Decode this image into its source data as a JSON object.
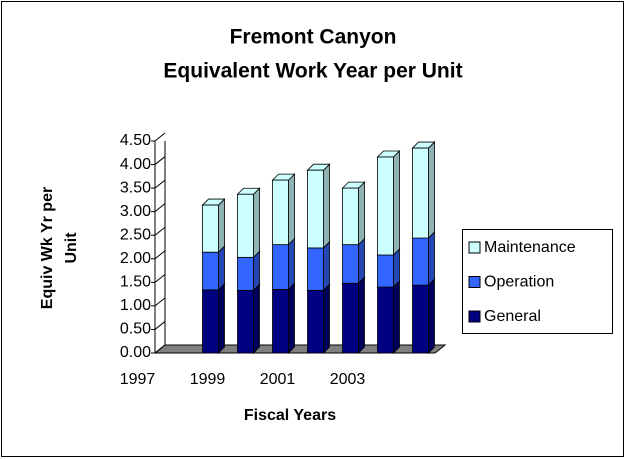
{
  "chart_data": {
    "type": "bar3d_stacked",
    "title": [
      "Fremont Canyon",
      "Equivalent Work Year per Unit"
    ],
    "ylabel": [
      "Equiv Wk Yr per",
      "Unit"
    ],
    "xlabel": "Fiscal Years",
    "categories": [
      "1997",
      null,
      "1999",
      null,
      "2001",
      null,
      "2003",
      null
    ],
    "series": [
      {
        "name": "General",
        "color": "#000080",
        "values": [
          null,
          1.34,
          1.33,
          1.35,
          1.33,
          1.48,
          1.4,
          1.44
        ]
      },
      {
        "name": "Operation",
        "color": "#3366ff",
        "values": [
          null,
          0.8,
          0.7,
          0.95,
          0.9,
          0.82,
          0.68,
          1.0
        ]
      },
      {
        "name": "Maintenance",
        "color": "#ccffff",
        "values": [
          null,
          1.0,
          1.34,
          1.37,
          1.65,
          1.2,
          2.08,
          1.91
        ]
      }
    ],
    "ylim": [
      0,
      4.5
    ],
    "yticks": [
      {
        "value": 0,
        "label": "0.00"
      },
      {
        "value": 0.5,
        "label": "0.50"
      },
      {
        "value": 1,
        "label": "1.00"
      },
      {
        "value": 1.5,
        "label": "1.50"
      },
      {
        "value": 2,
        "label": "2.00"
      },
      {
        "value": 2.5,
        "label": "2.50"
      },
      {
        "value": 3,
        "label": "3.00"
      },
      {
        "value": 3.5,
        "label": "3.50"
      },
      {
        "value": 4,
        "label": "4.00"
      },
      {
        "value": 4.5,
        "label": "4.50"
      }
    ],
    "grid": false,
    "legend": "right"
  }
}
